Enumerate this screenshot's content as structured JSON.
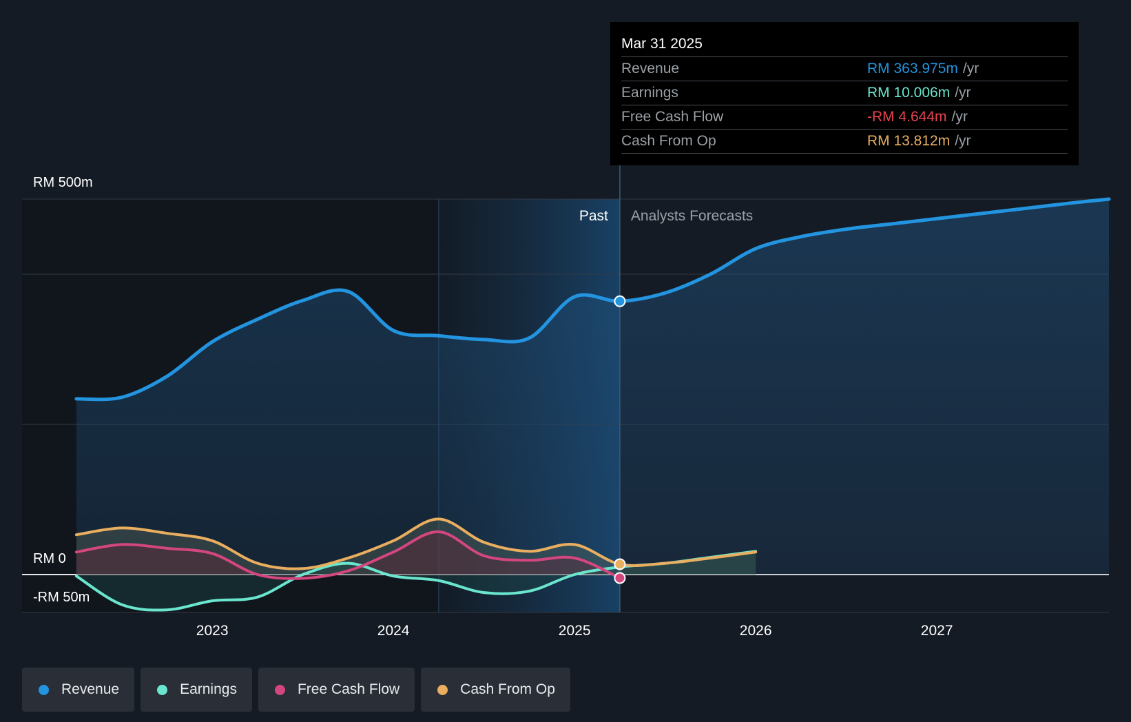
{
  "colors": {
    "background": "#151b24",
    "revenue": "#2394df",
    "earnings": "#6ae6cf",
    "free_cash_flow": "#d4467e",
    "cash_from_op": "#e9ae5f",
    "negative": "#e8444f"
  },
  "chart_data": {
    "type": "line",
    "title": "",
    "xlabel": "",
    "ylabel": "",
    "x_tick_labels": [
      "2023",
      "2024",
      "2025",
      "2026",
      "2027"
    ],
    "y_axis_labels": [
      "RM 500m",
      "RM 0",
      "-RM 50m"
    ],
    "ylim": [
      -50,
      500
    ],
    "x_range": [
      2021.95,
      2027.95
    ],
    "past_label": "Past",
    "forecast_label": "Analysts Forecasts",
    "divider_x": 2025.25,
    "highlight_start_x": 2024.25,
    "series": [
      {
        "name": "Revenue",
        "color_key": "revenue",
        "x": [
          2022.25,
          2022.5,
          2022.75,
          2023.0,
          2023.25,
          2023.5,
          2023.75,
          2024.0,
          2024.25,
          2024.5,
          2024.75,
          2025.0,
          2025.25,
          2025.5,
          2025.75,
          2026.0,
          2026.25,
          2026.5,
          2026.75,
          2027.0,
          2027.25,
          2027.5,
          2027.75,
          2027.95
        ],
        "values": [
          234,
          236,
          264,
          310,
          340,
          365,
          377,
          325,
          318,
          313,
          315,
          370,
          364,
          375,
          400,
          434,
          450,
          460,
          467,
          474,
          481,
          488,
          495,
          500
        ]
      },
      {
        "name": "Earnings",
        "color_key": "earnings",
        "x": [
          2022.25,
          2022.5,
          2022.75,
          2023.0,
          2023.25,
          2023.5,
          2023.75,
          2024.0,
          2024.25,
          2024.5,
          2024.75,
          2025.0,
          2025.25,
          2025.5,
          2025.75,
          2026.0
        ],
        "values": [
          -2,
          -40,
          -47,
          -35,
          -30,
          0,
          15,
          -2,
          -8,
          -24,
          -22,
          0,
          10,
          15,
          23,
          31
        ]
      },
      {
        "name": "Free Cash Flow",
        "color_key": "free_cash_flow",
        "x": [
          2022.25,
          2022.5,
          2022.75,
          2023.0,
          2023.25,
          2023.5,
          2023.75,
          2024.0,
          2024.25,
          2024.5,
          2024.75,
          2025.0,
          2025.25
        ],
        "values": [
          30,
          40,
          35,
          28,
          0,
          -5,
          5,
          30,
          57,
          25,
          19,
          22,
          -4.644
        ]
      },
      {
        "name": "Cash From Op",
        "color_key": "cash_from_op",
        "x": [
          2022.25,
          2022.5,
          2022.75,
          2023.0,
          2023.25,
          2023.5,
          2023.75,
          2024.0,
          2024.25,
          2024.5,
          2024.75,
          2025.0,
          2025.25,
          2025.5,
          2025.75,
          2026.0
        ],
        "values": [
          53,
          62,
          55,
          45,
          15,
          8,
          22,
          45,
          74,
          43,
          31,
          40,
          13.812,
          15,
          22,
          30
        ]
      }
    ]
  },
  "tooltip": {
    "date": "Mar 31 2025",
    "rows": [
      {
        "label": "Revenue",
        "value": "RM 363.975m",
        "unit": "/yr",
        "color_key": "revenue"
      },
      {
        "label": "Earnings",
        "value": "RM 10.006m",
        "unit": "/yr",
        "color_key": "earnings"
      },
      {
        "label": "Free Cash Flow",
        "value": "-RM 4.644m",
        "unit": "/yr",
        "color_key": "negative"
      },
      {
        "label": "Cash From Op",
        "value": "RM 13.812m",
        "unit": "/yr",
        "color_key": "cash_from_op"
      }
    ]
  },
  "legend": {
    "items": [
      {
        "label": "Revenue",
        "color_key": "revenue"
      },
      {
        "label": "Earnings",
        "color_key": "earnings"
      },
      {
        "label": "Free Cash Flow",
        "color_key": "free_cash_flow"
      },
      {
        "label": "Cash From Op",
        "color_key": "cash_from_op"
      }
    ]
  }
}
